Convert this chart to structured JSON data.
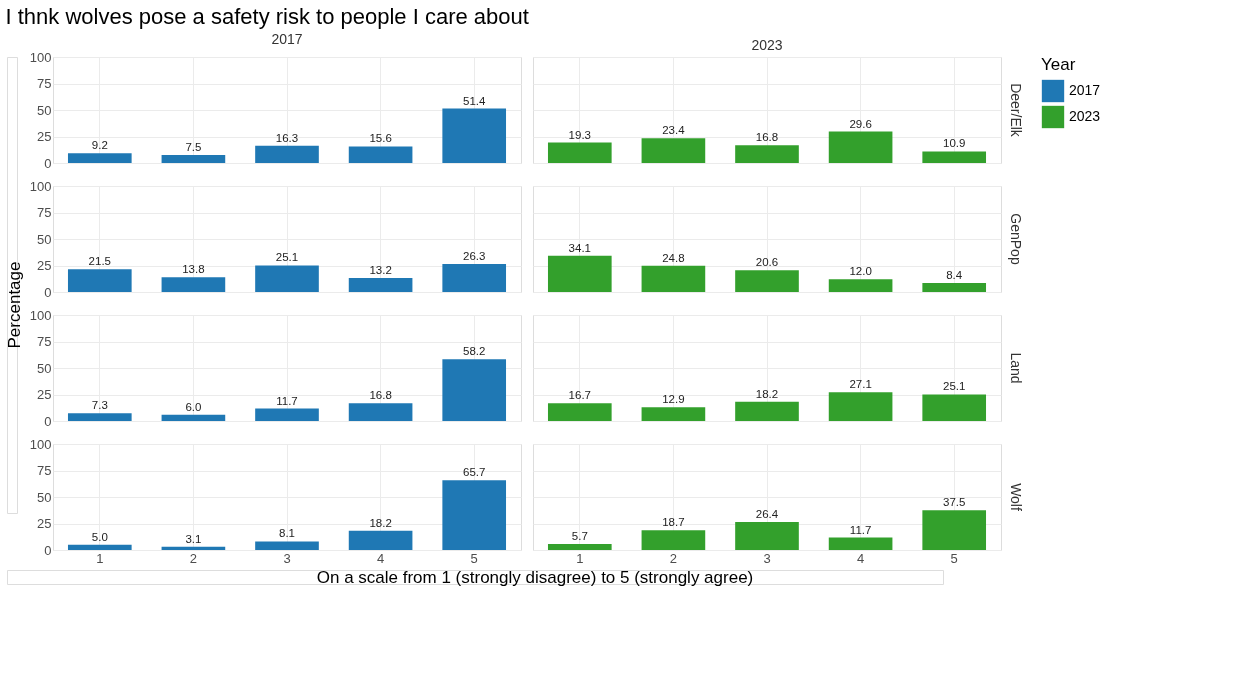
{
  "chart_data": [
    {
      "type": "bar",
      "title": "I thnk wolves pose a safety risk to people I care about",
      "subtitle": "2017",
      "xlabel": "On a scale from 1 (strongly disagree) to 5 (strongly agree)",
      "ylabel": "Percentage",
      "legend": "right",
      "legend_title": "Year",
      "categories": [
        "1",
        "2",
        "3",
        "4",
        "5"
      ],
      "series": [
        {
          "name": "2017",
          "color": "#1f78b4",
          "values": [
            9.2,
            7.5,
            16.3,
            15.6,
            51.4
          ],
          "value_labels": [
            "9.2",
            "7.5",
            "16.3",
            "15.6",
            "51.4"
          ]
        }
      ],
      "ylim": [
        0,
        100
      ],
      "yticks": [
        0,
        25,
        50,
        75,
        100
      ],
      "grid": true,
      "tick_labels": "y"
    },
    {
      "type": "bar",
      "subtitle": "2023",
      "y2label": "Deer/Elk",
      "categories": [
        "1",
        "2",
        "3",
        "4",
        "5"
      ],
      "series": [
        {
          "name": "2023",
          "color": "#33a02c",
          "values": [
            19.3,
            23.4,
            16.8,
            29.6,
            10.9
          ],
          "value_labels": [
            "19.3",
            "23.4",
            "16.8",
            "29.6",
            "10.9"
          ]
        }
      ],
      "ylim": [
        0,
        100
      ],
      "yticks": [
        0,
        25,
        50,
        75,
        100
      ],
      "grid": true,
      "tick_labels": false
    },
    {
      "type": "bar",
      "categories": [
        "1",
        "2",
        "3",
        "4",
        "5"
      ],
      "series": [
        {
          "color": "#1f78b4",
          "values": [
            21.5,
            13.8,
            25.1,
            13.2,
            26.3
          ],
          "value_labels": [
            "21.5",
            "13.8",
            "25.1",
            "13.2",
            "26.3"
          ]
        }
      ],
      "ylim": [
        0,
        100
      ],
      "yticks": [
        0,
        25,
        50,
        75,
        100
      ],
      "grid": true,
      "tick_labels": "y"
    },
    {
      "type": "bar",
      "y2label": "GenPop",
      "categories": [
        "1",
        "2",
        "3",
        "4",
        "5"
      ],
      "series": [
        {
          "color": "#33a02c",
          "values": [
            34.1,
            24.8,
            20.6,
            12.0,
            8.4
          ],
          "value_labels": [
            "34.1",
            "24.8",
            "20.6",
            "12.0",
            "8.4"
          ]
        }
      ],
      "ylim": [
        0,
        100
      ],
      "yticks": [
        0,
        25,
        50,
        75,
        100
      ],
      "grid": true,
      "tick_labels": false
    },
    {
      "type": "bar",
      "categories": [
        "1",
        "2",
        "3",
        "4",
        "5"
      ],
      "series": [
        {
          "color": "#1f78b4",
          "values": [
            7.3,
            6.0,
            11.7,
            16.8,
            58.2
          ],
          "value_labels": [
            "7.3",
            "6.0",
            "11.7",
            "16.8",
            "58.2"
          ]
        }
      ],
      "ylim": [
        0,
        100
      ],
      "yticks": [
        0,
        25,
        50,
        75,
        100
      ],
      "grid": true,
      "tick_labels": "y"
    },
    {
      "type": "bar",
      "y2label": "Land",
      "categories": [
        "1",
        "2",
        "3",
        "4",
        "5"
      ],
      "series": [
        {
          "color": "#33a02c",
          "values": [
            16.7,
            12.9,
            18.2,
            27.1,
            25.1
          ],
          "value_labels": [
            "16.7",
            "12.9",
            "18.2",
            "27.1",
            "25.1"
          ]
        }
      ],
      "ylim": [
        0,
        100
      ],
      "yticks": [
        0,
        25,
        50,
        75,
        100
      ],
      "grid": true,
      "tick_labels": false
    },
    {
      "type": "bar",
      "categories": [
        "1",
        "2",
        "3",
        "4",
        "5"
      ],
      "series": [
        {
          "color": "#1f78b4",
          "values": [
            5.0,
            3.1,
            8.1,
            18.2,
            65.7
          ],
          "value_labels": [
            "5.0",
            "3.1",
            "8.1",
            "18.2",
            "65.7"
          ]
        }
      ],
      "ylim": [
        0,
        100
      ],
      "yticks": [
        0,
        25,
        50,
        75,
        100
      ],
      "grid": true
    },
    {
      "type": "bar",
      "y2label": "Wolf",
      "categories": [
        "1",
        "2",
        "3",
        "4",
        "5"
      ],
      "series": [
        {
          "color": "#33a02c",
          "values": [
            5.7,
            18.7,
            26.4,
            11.7,
            37.5
          ],
          "value_labels": [
            "5.7",
            "18.7",
            "26.4",
            "11.7",
            "37.5"
          ]
        }
      ],
      "ylim": [
        0,
        100
      ],
      "yticks": [
        0,
        25,
        50,
        75,
        100
      ],
      "grid": true,
      "tick_labels": "x"
    }
  ]
}
